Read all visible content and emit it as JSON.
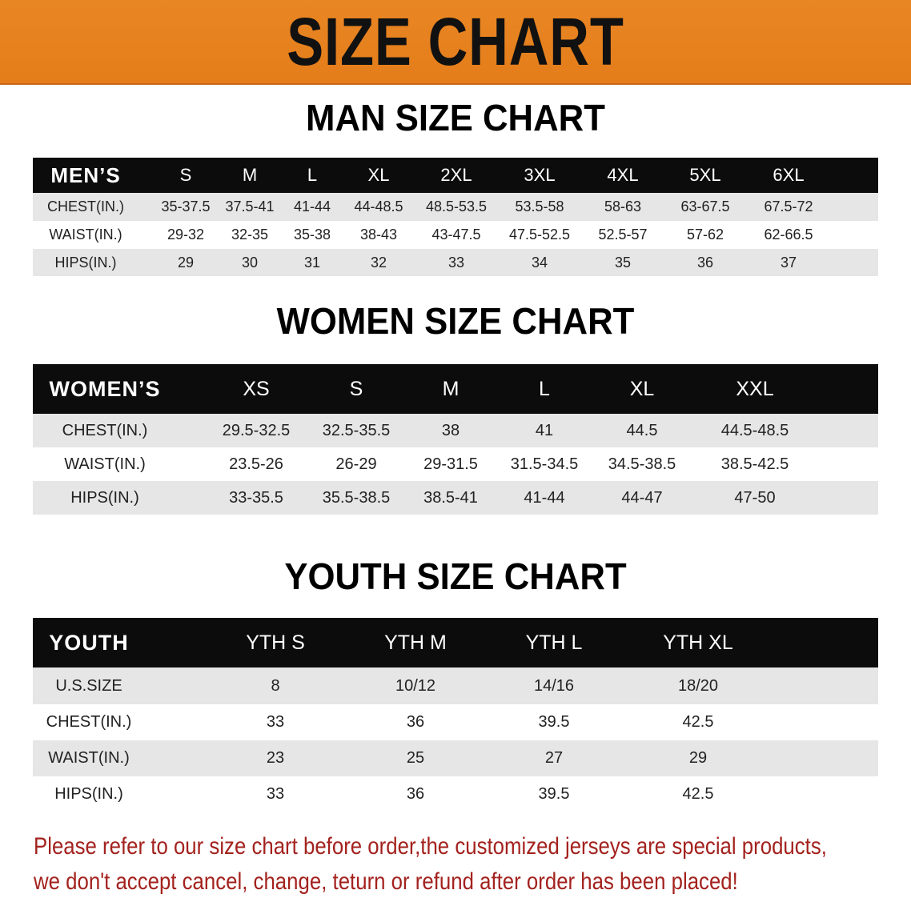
{
  "banner": {
    "title": "SIZE CHART",
    "color": "#e6801e"
  },
  "men": {
    "title": "MAN SIZE CHART",
    "header": [
      "MEN’S",
      "S",
      "M",
      "L",
      "XL",
      "2XL",
      "3XL",
      "4XL",
      "5XL",
      "6XL"
    ],
    "rows": [
      [
        "CHEST(IN.)",
        "35-37.5",
        "37.5-41",
        "41-44",
        "44-48.5",
        "48.5-53.5",
        "53.5-58",
        "58-63",
        "63-67.5",
        "67.5-72"
      ],
      [
        "WAIST(IN.)",
        "29-32",
        "32-35",
        "35-38",
        "38-43",
        "43-47.5",
        "47.5-52.5",
        "52.5-57",
        "57-62",
        "62-66.5"
      ],
      [
        "HIPS(IN.)",
        "29",
        "30",
        "31",
        "32",
        "33",
        "34",
        "35",
        "36",
        "37"
      ]
    ]
  },
  "women": {
    "title": "WOMEN SIZE CHART",
    "header": [
      "WOMEN’S",
      "XS",
      "S",
      "M",
      "L",
      "XL",
      "XXL"
    ],
    "rows": [
      [
        "CHEST(IN.)",
        "29.5-32.5",
        "32.5-35.5",
        "38",
        "41",
        "44.5",
        "44.5-48.5"
      ],
      [
        "WAIST(IN.)",
        "23.5-26",
        "26-29",
        "29-31.5",
        "31.5-34.5",
        "34.5-38.5",
        "38.5-42.5"
      ],
      [
        "HIPS(IN.)",
        "33-35.5",
        "35.5-38.5",
        "38.5-41",
        "41-44",
        "44-47",
        "47-50"
      ]
    ]
  },
  "youth": {
    "title": "YOUTH SIZE CHART",
    "header": [
      "YOUTH",
      "YTH S",
      "YTH M",
      "YTH L",
      "YTH XL"
    ],
    "rows": [
      [
        "U.S.SIZE",
        "8",
        "10/12",
        "14/16",
        "18/20"
      ],
      [
        "CHEST(IN.)",
        "33",
        "36",
        "39.5",
        "42.5"
      ],
      [
        "WAIST(IN.)",
        "23",
        "25",
        "27",
        "29"
      ],
      [
        "HIPS(IN.)",
        "33",
        "36",
        "39.5",
        "42.5"
      ]
    ]
  },
  "notice": {
    "line1": "Please refer to our size chart before order,the customized jerseys are special products,",
    "line2": "we don't accept cancel, change, teturn or refund after order has been placed!",
    "color": "#a3221e"
  }
}
